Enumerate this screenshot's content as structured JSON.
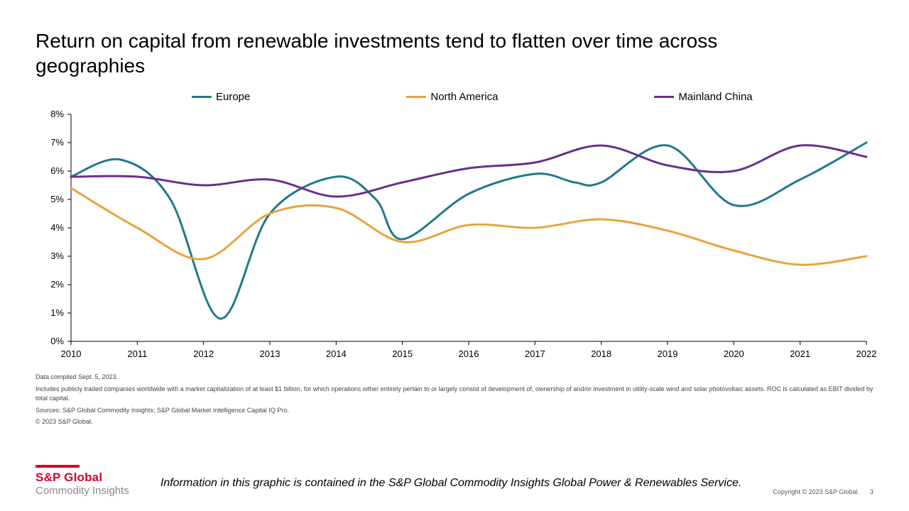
{
  "title": "Return on capital from renewable investments tend to flatten over time across geographies",
  "chart": {
    "type": "line",
    "background_color": "#ffffff",
    "axis_color": "#000000",
    "axis_stroke": 1,
    "label_fontsize": 13,
    "x": {
      "min": 2010,
      "max": 2022,
      "ticks": [
        2010,
        2011,
        2012,
        2013,
        2014,
        2015,
        2016,
        2017,
        2018,
        2019,
        2020,
        2021,
        2022
      ]
    },
    "y": {
      "min": 0,
      "max": 8,
      "ticks": [
        0,
        1,
        2,
        3,
        4,
        5,
        6,
        7,
        8
      ],
      "suffix": "%"
    },
    "series": [
      {
        "name": "Europe",
        "color": "#1f7a8c",
        "points": [
          [
            2010,
            5.8
          ],
          [
            2010.75,
            6.4
          ],
          [
            2011.5,
            5.0
          ],
          [
            2012.25,
            0.8
          ],
          [
            2013,
            4.5
          ],
          [
            2014,
            5.8
          ],
          [
            2014.6,
            5.0
          ],
          [
            2015,
            3.6
          ],
          [
            2016,
            5.2
          ],
          [
            2017,
            5.9
          ],
          [
            2017.6,
            5.6
          ],
          [
            2018,
            5.6
          ],
          [
            2019,
            6.9
          ],
          [
            2020,
            4.8
          ],
          [
            2021,
            5.7
          ],
          [
            2022,
            7.0
          ]
        ]
      },
      {
        "name": "North America",
        "color": "#e8a33d",
        "points": [
          [
            2010,
            5.4
          ],
          [
            2011,
            4.0
          ],
          [
            2012,
            2.9
          ],
          [
            2013,
            4.5
          ],
          [
            2014,
            4.7
          ],
          [
            2015,
            3.5
          ],
          [
            2016,
            4.1
          ],
          [
            2017,
            4.0
          ],
          [
            2018,
            4.3
          ],
          [
            2019,
            3.9
          ],
          [
            2020,
            3.2
          ],
          [
            2021,
            2.7
          ],
          [
            2022,
            3.0
          ]
        ]
      },
      {
        "name": "Mainland China",
        "color": "#6b2e8f",
        "points": [
          [
            2010,
            5.8
          ],
          [
            2011,
            5.8
          ],
          [
            2012,
            5.5
          ],
          [
            2013,
            5.7
          ],
          [
            2014,
            5.1
          ],
          [
            2015,
            5.6
          ],
          [
            2016,
            6.1
          ],
          [
            2017,
            6.3
          ],
          [
            2018,
            6.9
          ],
          [
            2019,
            6.2
          ],
          [
            2020,
            6.0
          ],
          [
            2021,
            6.9
          ],
          [
            2022,
            6.5
          ]
        ]
      }
    ]
  },
  "notes": {
    "compiled": "Data compiled Sept. 5, 2023.",
    "method": "Includes publicly traded companies worldwide with a market capitalization of at least $1 billion, for which operations either entirely pertain to or largely consist of development of, ownership of and/or investment in utility-scale wind and solar photovoltaic assets. ROC is calculated as EBIT divided by total capital.",
    "sources": "Sources: S&P Global Commodity Insights; S&P Global Market Intelligence Capital IQ Pro.",
    "copyright_small": "© 2023 S&P Global."
  },
  "logo": {
    "main": "S&P Global",
    "sub": "Commodity Insights",
    "accent_color": "#d6002a"
  },
  "service_note": "Information in this graphic is contained in the S&P Global Commodity Insights Global Power & Renewables Service.",
  "footer_copyright": "Copyright © 2023 S&P Global.",
  "page_number": "3"
}
